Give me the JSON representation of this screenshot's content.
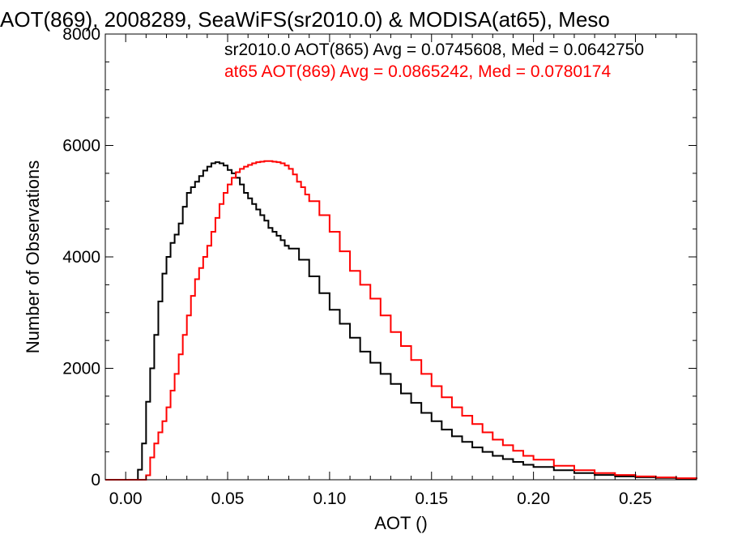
{
  "chart_data": {
    "type": "line",
    "title": "AOT(869), 2008289, SeaWiFS(sr2010.0) & MODISA(at65), Meso",
    "xlabel": "AOT ()",
    "ylabel": "Number of Observations",
    "xlim": [
      -0.01,
      0.28
    ],
    "ylim": [
      0,
      8000
    ],
    "x_ticks": [
      0.0,
      0.05,
      0.1,
      0.15,
      0.2,
      0.25
    ],
    "x_tick_labels": [
      "0.00",
      "0.05",
      "0.10",
      "0.15",
      "0.20",
      "0.25"
    ],
    "y_ticks": [
      0,
      2000,
      4000,
      6000,
      8000
    ],
    "y_tick_labels": [
      "0",
      "2000",
      "4000",
      "6000",
      "8000"
    ],
    "grid": false,
    "step": "histogram",
    "series": [
      {
        "name": "sr2010.0 AOT(865)",
        "color": "#000000",
        "points": [
          [
            -0.01,
            0
          ],
          [
            0.0,
            0
          ],
          [
            0.004,
            0
          ],
          [
            0.006,
            180
          ],
          [
            0.008,
            650
          ],
          [
            0.01,
            1400
          ],
          [
            0.012,
            2000
          ],
          [
            0.014,
            2600
          ],
          [
            0.016,
            3200
          ],
          [
            0.018,
            3700
          ],
          [
            0.02,
            4000
          ],
          [
            0.022,
            4250
          ],
          [
            0.024,
            4400
          ],
          [
            0.026,
            4600
          ],
          [
            0.028,
            4900
          ],
          [
            0.03,
            5150
          ],
          [
            0.032,
            5250
          ],
          [
            0.034,
            5350
          ],
          [
            0.036,
            5450
          ],
          [
            0.038,
            5550
          ],
          [
            0.04,
            5620
          ],
          [
            0.042,
            5680
          ],
          [
            0.044,
            5700
          ],
          [
            0.046,
            5680
          ],
          [
            0.048,
            5640
          ],
          [
            0.05,
            5560
          ],
          [
            0.052,
            5500
          ],
          [
            0.054,
            5420
          ],
          [
            0.056,
            5300
          ],
          [
            0.058,
            5150
          ],
          [
            0.06,
            5050
          ],
          [
            0.062,
            4950
          ],
          [
            0.064,
            4850
          ],
          [
            0.066,
            4750
          ],
          [
            0.068,
            4650
          ],
          [
            0.07,
            4520
          ],
          [
            0.072,
            4450
          ],
          [
            0.074,
            4380
          ],
          [
            0.076,
            4300
          ],
          [
            0.078,
            4200
          ],
          [
            0.08,
            4150
          ],
          [
            0.085,
            3950
          ],
          [
            0.09,
            3650
          ],
          [
            0.095,
            3350
          ],
          [
            0.1,
            3050
          ],
          [
            0.105,
            2800
          ],
          [
            0.11,
            2550
          ],
          [
            0.115,
            2300
          ],
          [
            0.12,
            2100
          ],
          [
            0.125,
            1900
          ],
          [
            0.13,
            1720
          ],
          [
            0.135,
            1550
          ],
          [
            0.14,
            1380
          ],
          [
            0.145,
            1200
          ],
          [
            0.15,
            1050
          ],
          [
            0.155,
            900
          ],
          [
            0.16,
            780
          ],
          [
            0.165,
            680
          ],
          [
            0.17,
            580
          ],
          [
            0.175,
            500
          ],
          [
            0.18,
            430
          ],
          [
            0.185,
            370
          ],
          [
            0.19,
            320
          ],
          [
            0.195,
            270
          ],
          [
            0.2,
            230
          ],
          [
            0.21,
            170
          ],
          [
            0.22,
            120
          ],
          [
            0.23,
            85
          ],
          [
            0.24,
            60
          ],
          [
            0.25,
            45
          ],
          [
            0.26,
            32
          ],
          [
            0.27,
            22
          ],
          [
            0.28,
            15
          ]
        ]
      },
      {
        "name": "at65 AOT(869)",
        "color": "#ff0000",
        "points": [
          [
            -0.01,
            0
          ],
          [
            0.0,
            0
          ],
          [
            0.008,
            0
          ],
          [
            0.01,
            80
          ],
          [
            0.012,
            400
          ],
          [
            0.014,
            650
          ],
          [
            0.016,
            850
          ],
          [
            0.018,
            1050
          ],
          [
            0.02,
            1300
          ],
          [
            0.022,
            1600
          ],
          [
            0.024,
            1900
          ],
          [
            0.026,
            2250
          ],
          [
            0.028,
            2600
          ],
          [
            0.03,
            2950
          ],
          [
            0.032,
            3300
          ],
          [
            0.034,
            3600
          ],
          [
            0.036,
            3800
          ],
          [
            0.038,
            4000
          ],
          [
            0.04,
            4200
          ],
          [
            0.042,
            4450
          ],
          [
            0.044,
            4700
          ],
          [
            0.046,
            4950
          ],
          [
            0.048,
            5150
          ],
          [
            0.05,
            5300
          ],
          [
            0.052,
            5420
          ],
          [
            0.054,
            5520
          ],
          [
            0.056,
            5580
          ],
          [
            0.058,
            5620
          ],
          [
            0.06,
            5650
          ],
          [
            0.062,
            5680
          ],
          [
            0.064,
            5700
          ],
          [
            0.066,
            5710
          ],
          [
            0.068,
            5720
          ],
          [
            0.07,
            5720
          ],
          [
            0.072,
            5710
          ],
          [
            0.074,
            5700
          ],
          [
            0.076,
            5680
          ],
          [
            0.078,
            5640
          ],
          [
            0.08,
            5580
          ],
          [
            0.082,
            5480
          ],
          [
            0.084,
            5350
          ],
          [
            0.086,
            5250
          ],
          [
            0.088,
            5120
          ],
          [
            0.09,
            5000
          ],
          [
            0.095,
            4750
          ],
          [
            0.1,
            4450
          ],
          [
            0.105,
            4100
          ],
          [
            0.11,
            3750
          ],
          [
            0.115,
            3500
          ],
          [
            0.12,
            3250
          ],
          [
            0.125,
            2950
          ],
          [
            0.13,
            2650
          ],
          [
            0.135,
            2400
          ],
          [
            0.14,
            2150
          ],
          [
            0.145,
            1900
          ],
          [
            0.15,
            1680
          ],
          [
            0.155,
            1480
          ],
          [
            0.16,
            1300
          ],
          [
            0.165,
            1150
          ],
          [
            0.17,
            1000
          ],
          [
            0.175,
            850
          ],
          [
            0.18,
            720
          ],
          [
            0.185,
            620
          ],
          [
            0.19,
            520
          ],
          [
            0.195,
            430
          ],
          [
            0.2,
            360
          ],
          [
            0.21,
            250
          ],
          [
            0.22,
            170
          ],
          [
            0.23,
            120
          ],
          [
            0.24,
            85
          ],
          [
            0.25,
            60
          ],
          [
            0.26,
            42
          ],
          [
            0.27,
            28
          ],
          [
            0.28,
            18
          ]
        ]
      }
    ],
    "annotations": [
      {
        "text": "sr2010.0 AOT(865) Avg = 0.0745608, Med = 0.0642750",
        "color": "#000000"
      },
      {
        "text": "at65 AOT(869) Avg = 0.0865242, Med = 0.0780174",
        "color": "#ff0000"
      }
    ]
  }
}
